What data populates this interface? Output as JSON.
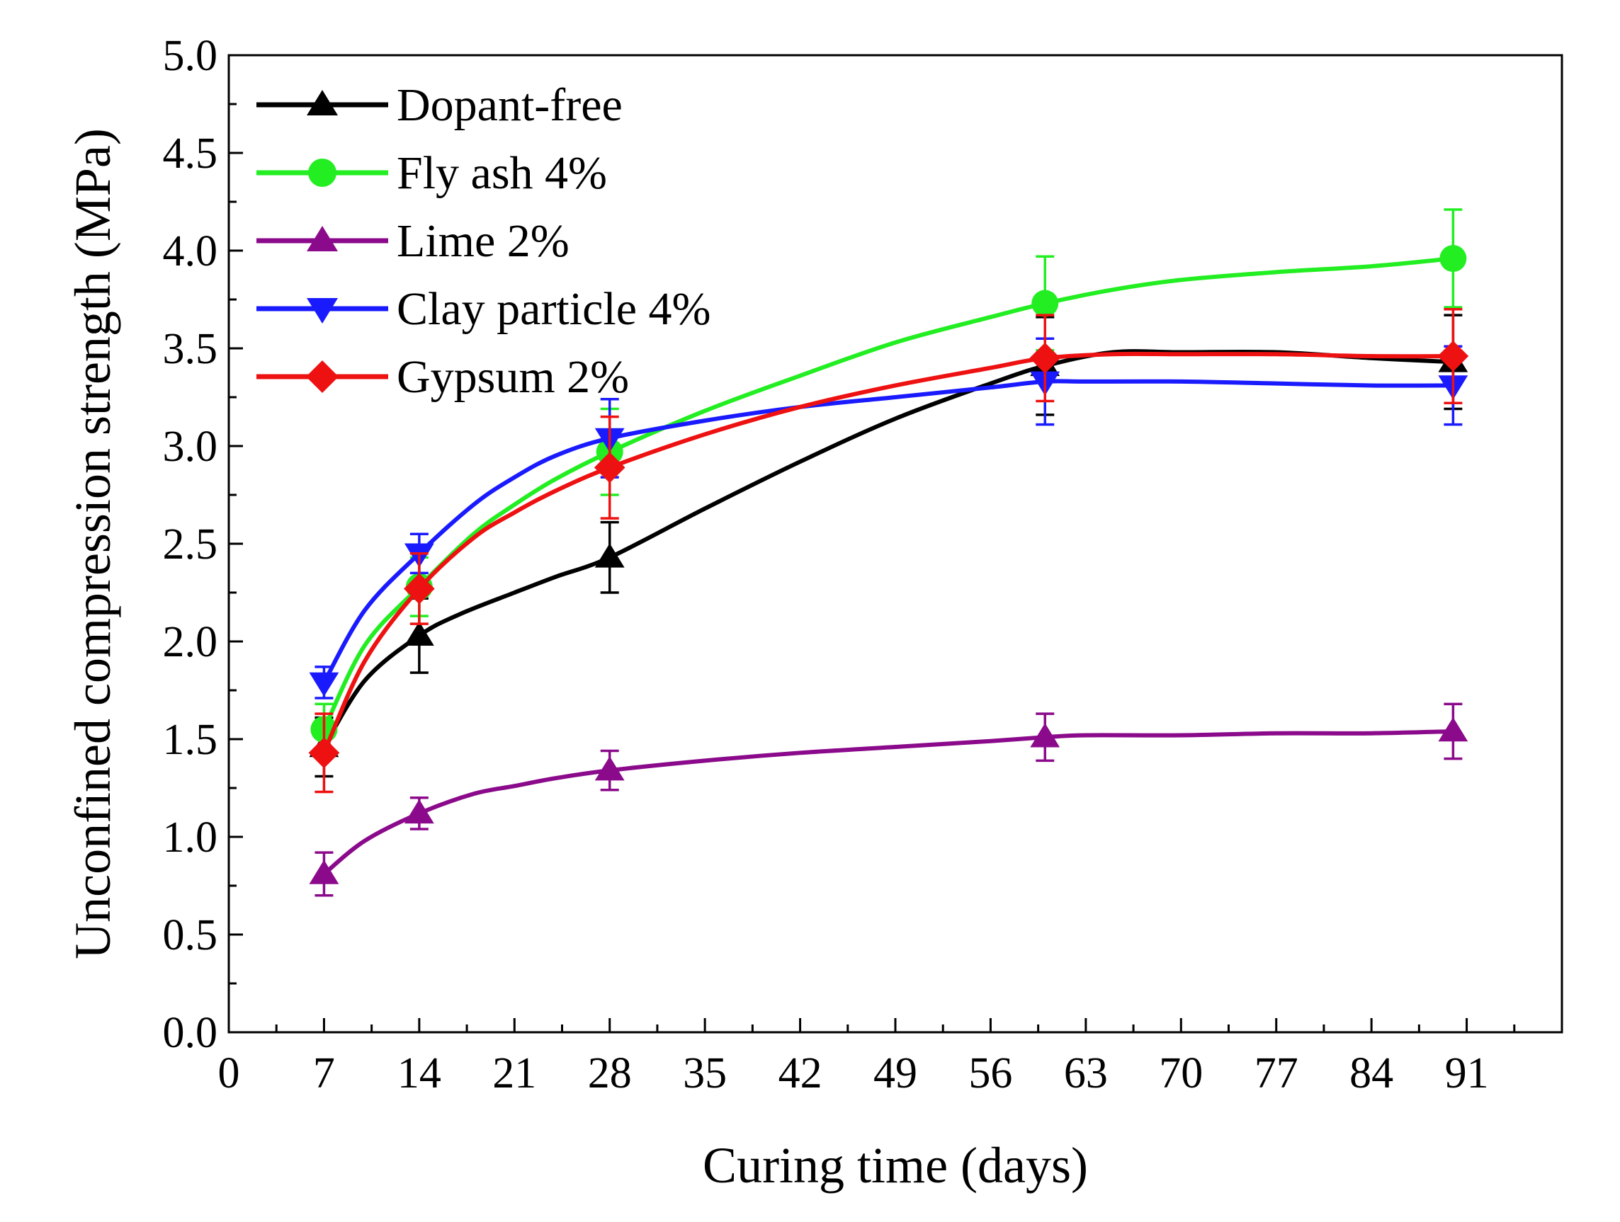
{
  "chart_data": {
    "type": "line",
    "title": "",
    "xlabel": "Curing time (days)",
    "ylabel": "Unconfined compression strength (MPa)",
    "xlim": [
      0,
      98
    ],
    "ylim": [
      0,
      5.0
    ],
    "xticks": [
      0,
      7,
      14,
      21,
      28,
      35,
      42,
      49,
      56,
      63,
      70,
      77,
      84,
      91
    ],
    "yticks": [
      0.0,
      0.5,
      1.0,
      1.5,
      2.0,
      2.5,
      3.0,
      3.5,
      4.0,
      4.5,
      5.0
    ],
    "ytick_labels": [
      "0.0",
      "0.5",
      "1.0",
      "1.5",
      "2.0",
      "2.5",
      "3.0",
      "3.5",
      "4.0",
      "4.5",
      "5.0"
    ],
    "legend_position": "top-left",
    "x": [
      7,
      14,
      28,
      60,
      90
    ],
    "series": [
      {
        "name": "Dopant-free",
        "color": "#000000",
        "marker": "triangle-up",
        "values": [
          1.46,
          2.03,
          2.43,
          3.41,
          3.43
        ],
        "errors": [
          0.15,
          0.19,
          0.18,
          0.25,
          0.24
        ],
        "curve": [
          [
            7,
            1.46
          ],
          [
            10,
            1.8
          ],
          [
            14,
            2.03
          ],
          [
            17,
            2.14
          ],
          [
            21,
            2.25
          ],
          [
            24,
            2.33
          ],
          [
            28,
            2.43
          ],
          [
            35,
            2.68
          ],
          [
            42,
            2.92
          ],
          [
            49,
            3.14
          ],
          [
            56,
            3.32
          ],
          [
            60,
            3.41
          ],
          [
            65,
            3.48
          ],
          [
            70,
            3.48
          ],
          [
            77,
            3.48
          ],
          [
            84,
            3.45
          ],
          [
            90,
            3.43
          ]
        ]
      },
      {
        "name": "Fly ash 4%",
        "color": "#22ee22",
        "marker": "circle",
        "values": [
          1.55,
          2.28,
          2.97,
          3.73,
          3.96
        ],
        "errors": [
          0.13,
          0.15,
          0.22,
          0.24,
          0.25
        ],
        "curve": [
          [
            7,
            1.55
          ],
          [
            10,
            1.98
          ],
          [
            14,
            2.28
          ],
          [
            18,
            2.55
          ],
          [
            21,
            2.7
          ],
          [
            24,
            2.83
          ],
          [
            28,
            2.97
          ],
          [
            35,
            3.18
          ],
          [
            42,
            3.36
          ],
          [
            49,
            3.53
          ],
          [
            56,
            3.66
          ],
          [
            60,
            3.73
          ],
          [
            65,
            3.8
          ],
          [
            70,
            3.85
          ],
          [
            77,
            3.89
          ],
          [
            84,
            3.92
          ],
          [
            90,
            3.96
          ]
        ]
      },
      {
        "name": "Lime 2%",
        "color": "#8b0a8b",
        "marker": "triangle-up",
        "values": [
          0.81,
          1.12,
          1.34,
          1.51,
          1.54
        ],
        "errors": [
          0.11,
          0.08,
          0.1,
          0.12,
          0.14
        ],
        "curve": [
          [
            7,
            0.81
          ],
          [
            10,
            0.98
          ],
          [
            14,
            1.12
          ],
          [
            18,
            1.22
          ],
          [
            21,
            1.26
          ],
          [
            24,
            1.3
          ],
          [
            28,
            1.34
          ],
          [
            35,
            1.39
          ],
          [
            42,
            1.43
          ],
          [
            49,
            1.46
          ],
          [
            56,
            1.49
          ],
          [
            60,
            1.51
          ],
          [
            63,
            1.52
          ],
          [
            70,
            1.52
          ],
          [
            77,
            1.53
          ],
          [
            84,
            1.53
          ],
          [
            90,
            1.54
          ]
        ]
      },
      {
        "name": "Clay particle 4%",
        "color": "#1a1aff",
        "marker": "triangle-down",
        "values": [
          1.79,
          2.45,
          3.04,
          3.33,
          3.31
        ],
        "errors": [
          0.08,
          0.1,
          0.2,
          0.22,
          0.2
        ],
        "curve": [
          [
            7,
            1.79
          ],
          [
            10,
            2.16
          ],
          [
            14,
            2.45
          ],
          [
            18,
            2.7
          ],
          [
            21,
            2.84
          ],
          [
            24,
            2.95
          ],
          [
            28,
            3.04
          ],
          [
            35,
            3.13
          ],
          [
            42,
            3.2
          ],
          [
            49,
            3.25
          ],
          [
            56,
            3.3
          ],
          [
            60,
            3.33
          ],
          [
            63,
            3.33
          ],
          [
            70,
            3.33
          ],
          [
            77,
            3.32
          ],
          [
            84,
            3.31
          ],
          [
            90,
            3.31
          ]
        ]
      },
      {
        "name": "Gypsum 2%",
        "color": "#ee1111",
        "marker": "diamond",
        "values": [
          1.43,
          2.27,
          2.89,
          3.45,
          3.46
        ],
        "errors": [
          0.2,
          0.18,
          0.26,
          0.22,
          0.24
        ],
        "curve": [
          [
            7,
            1.43
          ],
          [
            10,
            1.9
          ],
          [
            14,
            2.27
          ],
          [
            18,
            2.53
          ],
          [
            21,
            2.66
          ],
          [
            24,
            2.77
          ],
          [
            28,
            2.89
          ],
          [
            35,
            3.06
          ],
          [
            42,
            3.2
          ],
          [
            49,
            3.31
          ],
          [
            56,
            3.4
          ],
          [
            60,
            3.45
          ],
          [
            65,
            3.47
          ],
          [
            70,
            3.47
          ],
          [
            77,
            3.47
          ],
          [
            84,
            3.46
          ],
          [
            90,
            3.46
          ]
        ]
      }
    ]
  }
}
